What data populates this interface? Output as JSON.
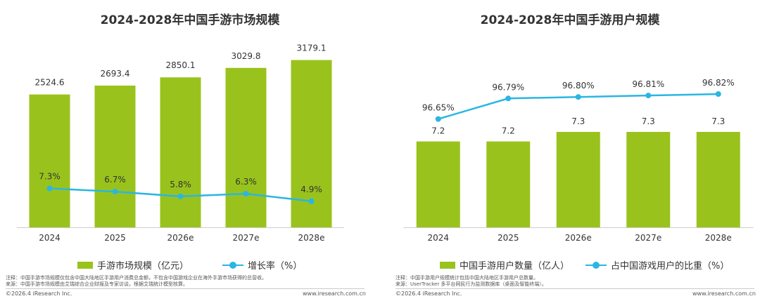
{
  "colors": {
    "bar": "#99c31c",
    "line": "#29b6e3",
    "axis": "#cccccc",
    "text": "#333333"
  },
  "chart_data": [
    {
      "type": "bar",
      "title": "2024-2028年中国手游市场规模",
      "categories": [
        "2024",
        "2025",
        "2026e",
        "2027e",
        "2028e"
      ],
      "series": [
        {
          "name": "手游市场规模（亿元）",
          "type": "bar",
          "values": [
            2524.6,
            2693.4,
            2850.1,
            3029.8,
            3179.1
          ],
          "labels": [
            "2524.6",
            "2693.4",
            "2850.1",
            "3029.8",
            "3179.1"
          ]
        },
        {
          "name": "增长率（%）",
          "type": "line",
          "values": [
            7.3,
            6.7,
            5.8,
            6.3,
            4.9
          ],
          "labels": [
            "7.3%",
            "6.7%",
            "5.8%",
            "6.3%",
            "4.9%"
          ]
        }
      ],
      "bar_ylim": [
        0,
        3600
      ],
      "line_ylim": [
        0,
        50
      ],
      "footnote": {
        "note": "注释：中国手游市场规模仅包含中国大陆地区手游用户消费总金额，不包含中国游戏企业在海外手游市场获得的总营收。",
        "source": "来源：中国手游市场规模由艾瑞综合企业财报及专家访谈，根据艾瑞统计模型核算。"
      },
      "copyright": "©2026.4 iResearch Inc.",
      "website": "www.iresearch.com.cn"
    },
    {
      "type": "bar",
      "title": "2024-2028年中国手游用户规模",
      "categories": [
        "2024",
        "2025",
        "2026e",
        "2027e",
        "2028e"
      ],
      "series": [
        {
          "name": "中国手游用户数量（亿人）",
          "type": "bar",
          "values": [
            7.2,
            7.2,
            7.3,
            7.3,
            7.3
          ],
          "labels": [
            "7.2",
            "7.2",
            "7.3",
            "7.3",
            "7.3"
          ]
        },
        {
          "name": "占中国游戏用户的比重（%）",
          "type": "line",
          "values": [
            96.65,
            96.79,
            96.8,
            96.81,
            96.82
          ],
          "labels": [
            "96.65%",
            "96.79%",
            "96.80%",
            "96.81%",
            "96.82%"
          ]
        }
      ],
      "footnote": {
        "note": "注释：中国手游用户规模统计包括中国大陆地区手游用户总数量。",
        "source": "来源：UserTracker 多平台网民行为监测数据库（桌面及智能终端）。"
      },
      "copyright": "©2026.4 iResearch Inc.",
      "website": "www.iresearch.com.cn"
    }
  ]
}
